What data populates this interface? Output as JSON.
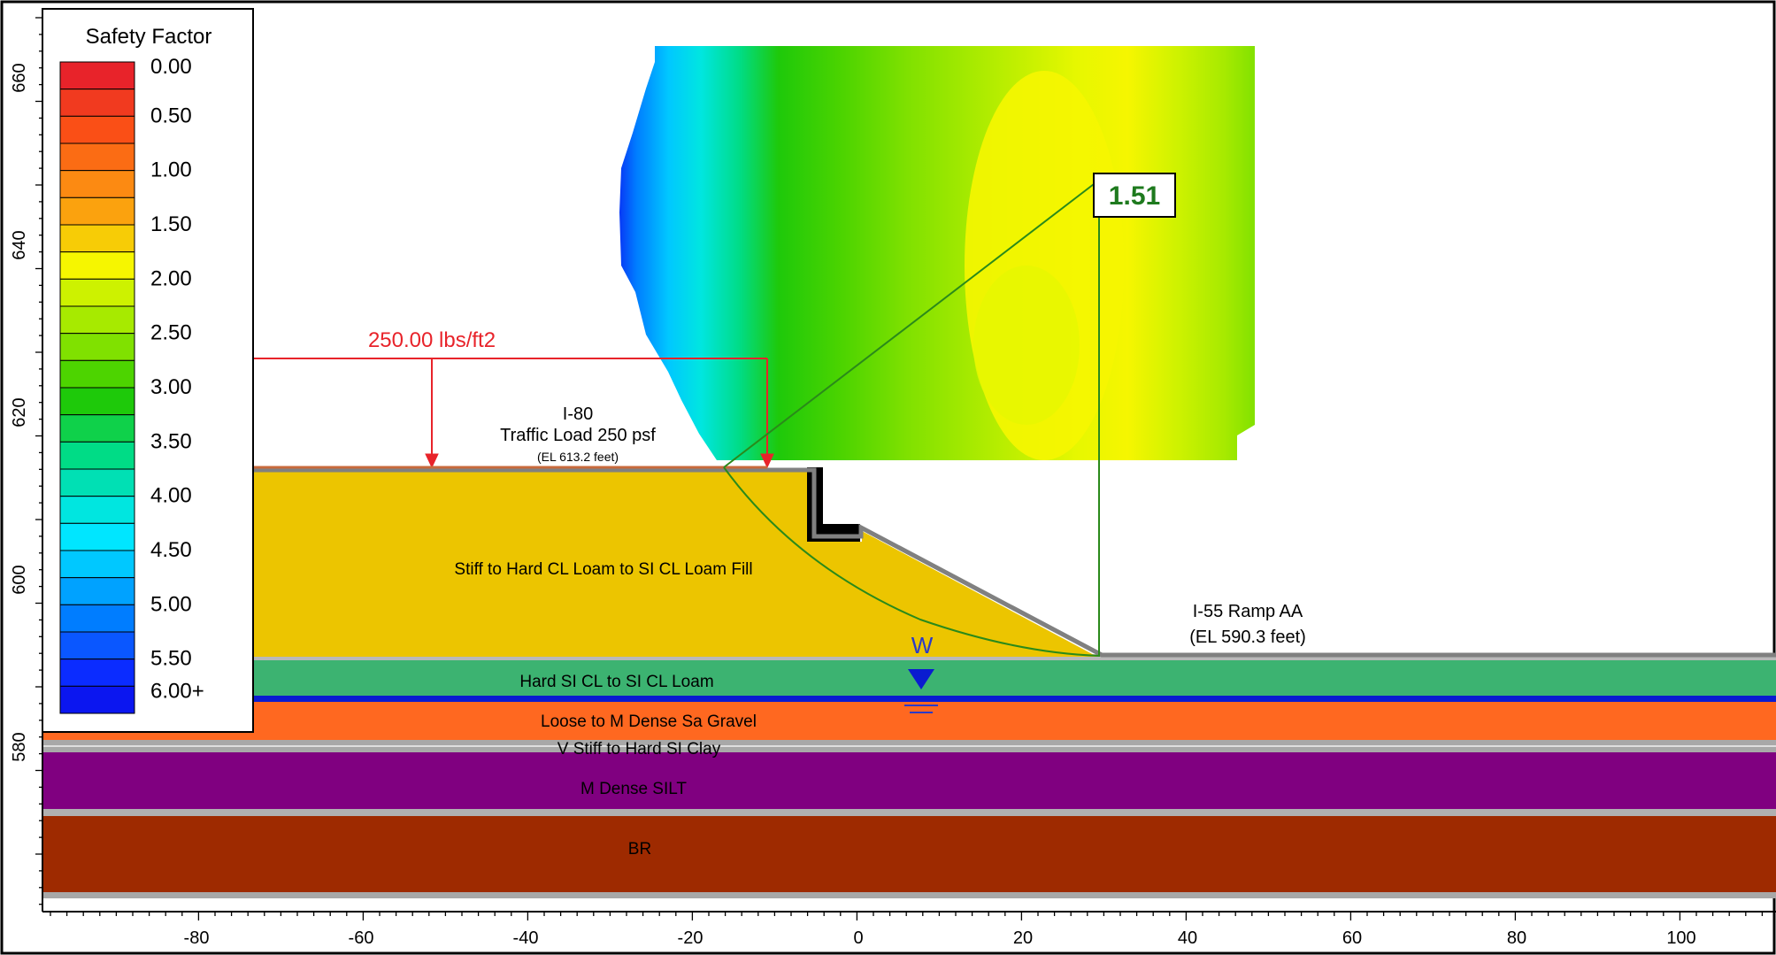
{
  "legend": {
    "title": "Safety Factor",
    "bands": [
      {
        "label": "0.00",
        "color": "#e8232a"
      },
      {
        "label": "",
        "color": "#f13a1f"
      },
      {
        "label": "0.50",
        "color": "#fa4f16"
      },
      {
        "label": "",
        "color": "#fb6c14"
      },
      {
        "label": "1.00",
        "color": "#fc8a12"
      },
      {
        "label": "",
        "color": "#fba20e"
      },
      {
        "label": "1.50",
        "color": "#f7cc06"
      },
      {
        "label": "",
        "color": "#f6f600"
      },
      {
        "label": "2.00",
        "color": "#cdf200"
      },
      {
        "label": "",
        "color": "#a7ea00"
      },
      {
        "label": "2.50",
        "color": "#80e100"
      },
      {
        "label": "",
        "color": "#4dd400"
      },
      {
        "label": "3.00",
        "color": "#1ec90a"
      },
      {
        "label": "",
        "color": "#0fd14a"
      },
      {
        "label": "3.50",
        "color": "#00dc86"
      },
      {
        "label": "",
        "color": "#00e0b4"
      },
      {
        "label": "4.00",
        "color": "#00e6e0"
      },
      {
        "label": "",
        "color": "#00e6ff"
      },
      {
        "label": "4.50",
        "color": "#00c8ff"
      },
      {
        "label": "",
        "color": "#00a2ff"
      },
      {
        "label": "5.00",
        "color": "#007dff"
      },
      {
        "label": "",
        "color": "#0a57ff"
      },
      {
        "label": "5.50",
        "color": "#0b2cff"
      },
      {
        "label": "6.00+",
        "color": "#0b16f0"
      }
    ]
  },
  "y_axis": {
    "ticks": [
      "660",
      "640",
      "620",
      "600",
      "580"
    ]
  },
  "x_axis": {
    "ticks": [
      "-80",
      "-60",
      "-40",
      "-20",
      "0",
      "20",
      "40",
      "60",
      "80",
      "100"
    ]
  },
  "load": {
    "magnitude_label": "250.00 lbs/ft2",
    "color": "#e8232a"
  },
  "annotations": {
    "top_road_name": "I-80",
    "top_road_load": "Traffic Load 250 psf",
    "top_road_elevation": "(EL 613.2 feet)",
    "ramp_name": "I-55 Ramp AA",
    "ramp_elevation": "(EL 590.3 feet)",
    "safety_factor_result": "1.51",
    "water_symbol": "W"
  },
  "layers": [
    {
      "name": "Stiff to Hard CL Loam to SI CL Loam Fill",
      "color": "#ecc500"
    },
    {
      "name": "Hard SI CL to SI CL Loam",
      "color": "#3cb371"
    },
    {
      "name": "Loose to M Dense Sa Gravel",
      "color": "#ff6820"
    },
    {
      "name": "V Stiff to Hard  SI Clay",
      "color": "#a8a8a8"
    },
    {
      "name": "M Dense SILT",
      "color": "#800080"
    },
    {
      "name": "BR",
      "color": "#9e2a00"
    }
  ],
  "colors": {
    "slip_surface": "#2a8a1a",
    "water_table": "#0a1cd0",
    "result_text": "#1e7a1e"
  }
}
